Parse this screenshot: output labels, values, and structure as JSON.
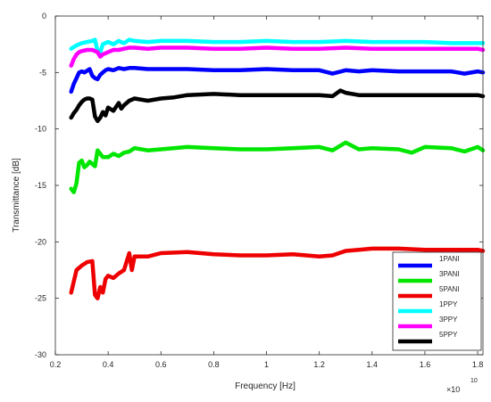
{
  "chart_data": {
    "type": "line",
    "title": "",
    "xlabel": "Frequency [Hz]",
    "ylabel": "Transmittance [dB]",
    "x_exponent_label": "×10",
    "x_exponent_power": "10",
    "xlim": [
      0.2,
      1.82
    ],
    "ylim": [
      -30,
      0
    ],
    "xticks": [
      0.2,
      0.4,
      0.6,
      0.8,
      1,
      1.2,
      1.4,
      1.6,
      1.8
    ],
    "xtick_labels": [
      "0.2",
      "0.4",
      "0.6",
      "0.8",
      "1",
      "1.2",
      "1.4",
      "1.6",
      "1.8"
    ],
    "yticks": [
      0,
      -5,
      -10,
      -15,
      -20,
      -25,
      -30
    ],
    "ytick_labels": [
      "0",
      "-5",
      "-10",
      "-15",
      "-20",
      "-25",
      "-30"
    ],
    "grid": false,
    "legend_position": "bottom-right",
    "x_units": "×10^10 Hz",
    "series": [
      {
        "name": "1PANI",
        "color": "#0000ff",
        "x": [
          0.26,
          0.27,
          0.28,
          0.29,
          0.3,
          0.31,
          0.33,
          0.34,
          0.35,
          0.36,
          0.37,
          0.38,
          0.39,
          0.4,
          0.42,
          0.44,
          0.46,
          0.48,
          0.5,
          0.55,
          0.6,
          0.7,
          0.8,
          0.9,
          1.0,
          1.1,
          1.2,
          1.25,
          1.3,
          1.35,
          1.4,
          1.5,
          1.6,
          1.7,
          1.75,
          1.8,
          1.82
        ],
        "y": [
          -6.7,
          -6.0,
          -5.5,
          -5.0,
          -4.9,
          -5.0,
          -4.7,
          -5.3,
          -5.5,
          -5.6,
          -5.2,
          -5.0,
          -4.8,
          -4.7,
          -4.8,
          -4.6,
          -4.7,
          -4.6,
          -4.6,
          -4.7,
          -4.7,
          -4.7,
          -4.8,
          -4.8,
          -4.7,
          -4.8,
          -4.8,
          -5.1,
          -4.8,
          -4.9,
          -4.8,
          -4.9,
          -4.9,
          -4.9,
          -5.1,
          -4.9,
          -5.0
        ]
      },
      {
        "name": "3PANI",
        "color": "#00e600",
        "x": [
          0.26,
          0.27,
          0.28,
          0.29,
          0.3,
          0.31,
          0.32,
          0.33,
          0.34,
          0.35,
          0.36,
          0.37,
          0.38,
          0.4,
          0.42,
          0.44,
          0.46,
          0.48,
          0.5,
          0.55,
          0.6,
          0.7,
          0.8,
          0.9,
          1.0,
          1.1,
          1.2,
          1.25,
          1.3,
          1.35,
          1.4,
          1.5,
          1.55,
          1.6,
          1.7,
          1.75,
          1.8,
          1.82
        ],
        "y": [
          -15.3,
          -15.6,
          -14.8,
          -13.0,
          -12.8,
          -13.4,
          -13.2,
          -12.9,
          -13.1,
          -13.3,
          -11.9,
          -12.2,
          -12.5,
          -12.5,
          -12.2,
          -12.4,
          -12.1,
          -12.0,
          -11.7,
          -11.9,
          -11.8,
          -11.6,
          -11.7,
          -11.8,
          -11.8,
          -11.7,
          -11.6,
          -11.9,
          -11.2,
          -11.8,
          -11.7,
          -11.8,
          -12.1,
          -11.6,
          -11.7,
          -12.0,
          -11.6,
          -11.9
        ]
      },
      {
        "name": "5PANI",
        "color": "#ee0000",
        "x": [
          0.26,
          0.27,
          0.28,
          0.29,
          0.3,
          0.32,
          0.34,
          0.35,
          0.36,
          0.37,
          0.38,
          0.39,
          0.4,
          0.42,
          0.44,
          0.46,
          0.48,
          0.49,
          0.5,
          0.55,
          0.6,
          0.7,
          0.8,
          0.9,
          1.0,
          1.1,
          1.2,
          1.25,
          1.3,
          1.35,
          1.4,
          1.5,
          1.6,
          1.7,
          1.8,
          1.82
        ],
        "y": [
          -24.5,
          -23.5,
          -22.5,
          -22.3,
          -22.1,
          -21.8,
          -21.7,
          -24.7,
          -25.0,
          -24.0,
          -24.5,
          -23.3,
          -23.0,
          -23.2,
          -22.8,
          -22.5,
          -21.0,
          -22.5,
          -21.3,
          -21.3,
          -21.0,
          -20.9,
          -21.1,
          -21.2,
          -21.2,
          -21.1,
          -21.3,
          -21.2,
          -20.8,
          -20.7,
          -20.6,
          -20.6,
          -20.7,
          -20.7,
          -20.7,
          -20.8
        ]
      },
      {
        "name": "1PPY",
        "color": "#00ffff",
        "x": [
          0.26,
          0.28,
          0.3,
          0.32,
          0.34,
          0.35,
          0.36,
          0.37,
          0.38,
          0.4,
          0.42,
          0.44,
          0.46,
          0.48,
          0.5,
          0.55,
          0.6,
          0.7,
          0.8,
          0.9,
          1.0,
          1.1,
          1.2,
          1.3,
          1.4,
          1.5,
          1.6,
          1.7,
          1.8,
          1.82
        ],
        "y": [
          -2.9,
          -2.6,
          -2.4,
          -2.3,
          -2.2,
          -2.1,
          -3.1,
          -3.2,
          -2.5,
          -2.3,
          -2.5,
          -2.2,
          -2.4,
          -2.1,
          -2.2,
          -2.3,
          -2.2,
          -2.2,
          -2.3,
          -2.3,
          -2.2,
          -2.3,
          -2.3,
          -2.2,
          -2.3,
          -2.3,
          -2.3,
          -2.4,
          -2.4,
          -2.4
        ]
      },
      {
        "name": "3PPY",
        "color": "#ff00ff",
        "x": [
          0.26,
          0.27,
          0.28,
          0.29,
          0.3,
          0.32,
          0.34,
          0.35,
          0.36,
          0.37,
          0.38,
          0.4,
          0.42,
          0.44,
          0.46,
          0.48,
          0.5,
          0.55,
          0.6,
          0.7,
          0.8,
          0.9,
          1.0,
          1.1,
          1.2,
          1.3,
          1.4,
          1.5,
          1.6,
          1.7,
          1.8,
          1.82
        ],
        "y": [
          -4.4,
          -3.8,
          -3.4,
          -3.2,
          -3.1,
          -3.0,
          -3.0,
          -3.1,
          -3.2,
          -3.6,
          -3.4,
          -3.2,
          -3.0,
          -3.0,
          -2.9,
          -2.8,
          -2.8,
          -2.9,
          -2.8,
          -2.8,
          -2.9,
          -2.9,
          -2.8,
          -2.9,
          -2.9,
          -2.8,
          -2.9,
          -2.9,
          -2.9,
          -2.9,
          -2.9,
          -3.0
        ]
      },
      {
        "name": "5PPY",
        "color": "#000000",
        "x": [
          0.26,
          0.27,
          0.28,
          0.29,
          0.3,
          0.31,
          0.32,
          0.33,
          0.34,
          0.35,
          0.36,
          0.37,
          0.38,
          0.39,
          0.4,
          0.42,
          0.44,
          0.45,
          0.46,
          0.48,
          0.5,
          0.55,
          0.6,
          0.65,
          0.7,
          0.8,
          0.9,
          1.0,
          1.1,
          1.2,
          1.25,
          1.28,
          1.3,
          1.35,
          1.4,
          1.5,
          1.6,
          1.7,
          1.8,
          1.82
        ],
        "y": [
          -9.0,
          -8.6,
          -8.3,
          -7.9,
          -7.6,
          -7.4,
          -7.3,
          -7.3,
          -7.4,
          -8.9,
          -9.3,
          -9.0,
          -8.5,
          -8.8,
          -8.1,
          -8.4,
          -7.7,
          -8.2,
          -7.9,
          -7.5,
          -7.3,
          -7.5,
          -7.3,
          -7.2,
          -7.0,
          -6.9,
          -7.0,
          -7.0,
          -7.0,
          -7.0,
          -7.1,
          -6.6,
          -6.8,
          -7.0,
          -7.0,
          -7.0,
          -7.0,
          -7.0,
          -7.0,
          -7.1
        ]
      }
    ]
  }
}
